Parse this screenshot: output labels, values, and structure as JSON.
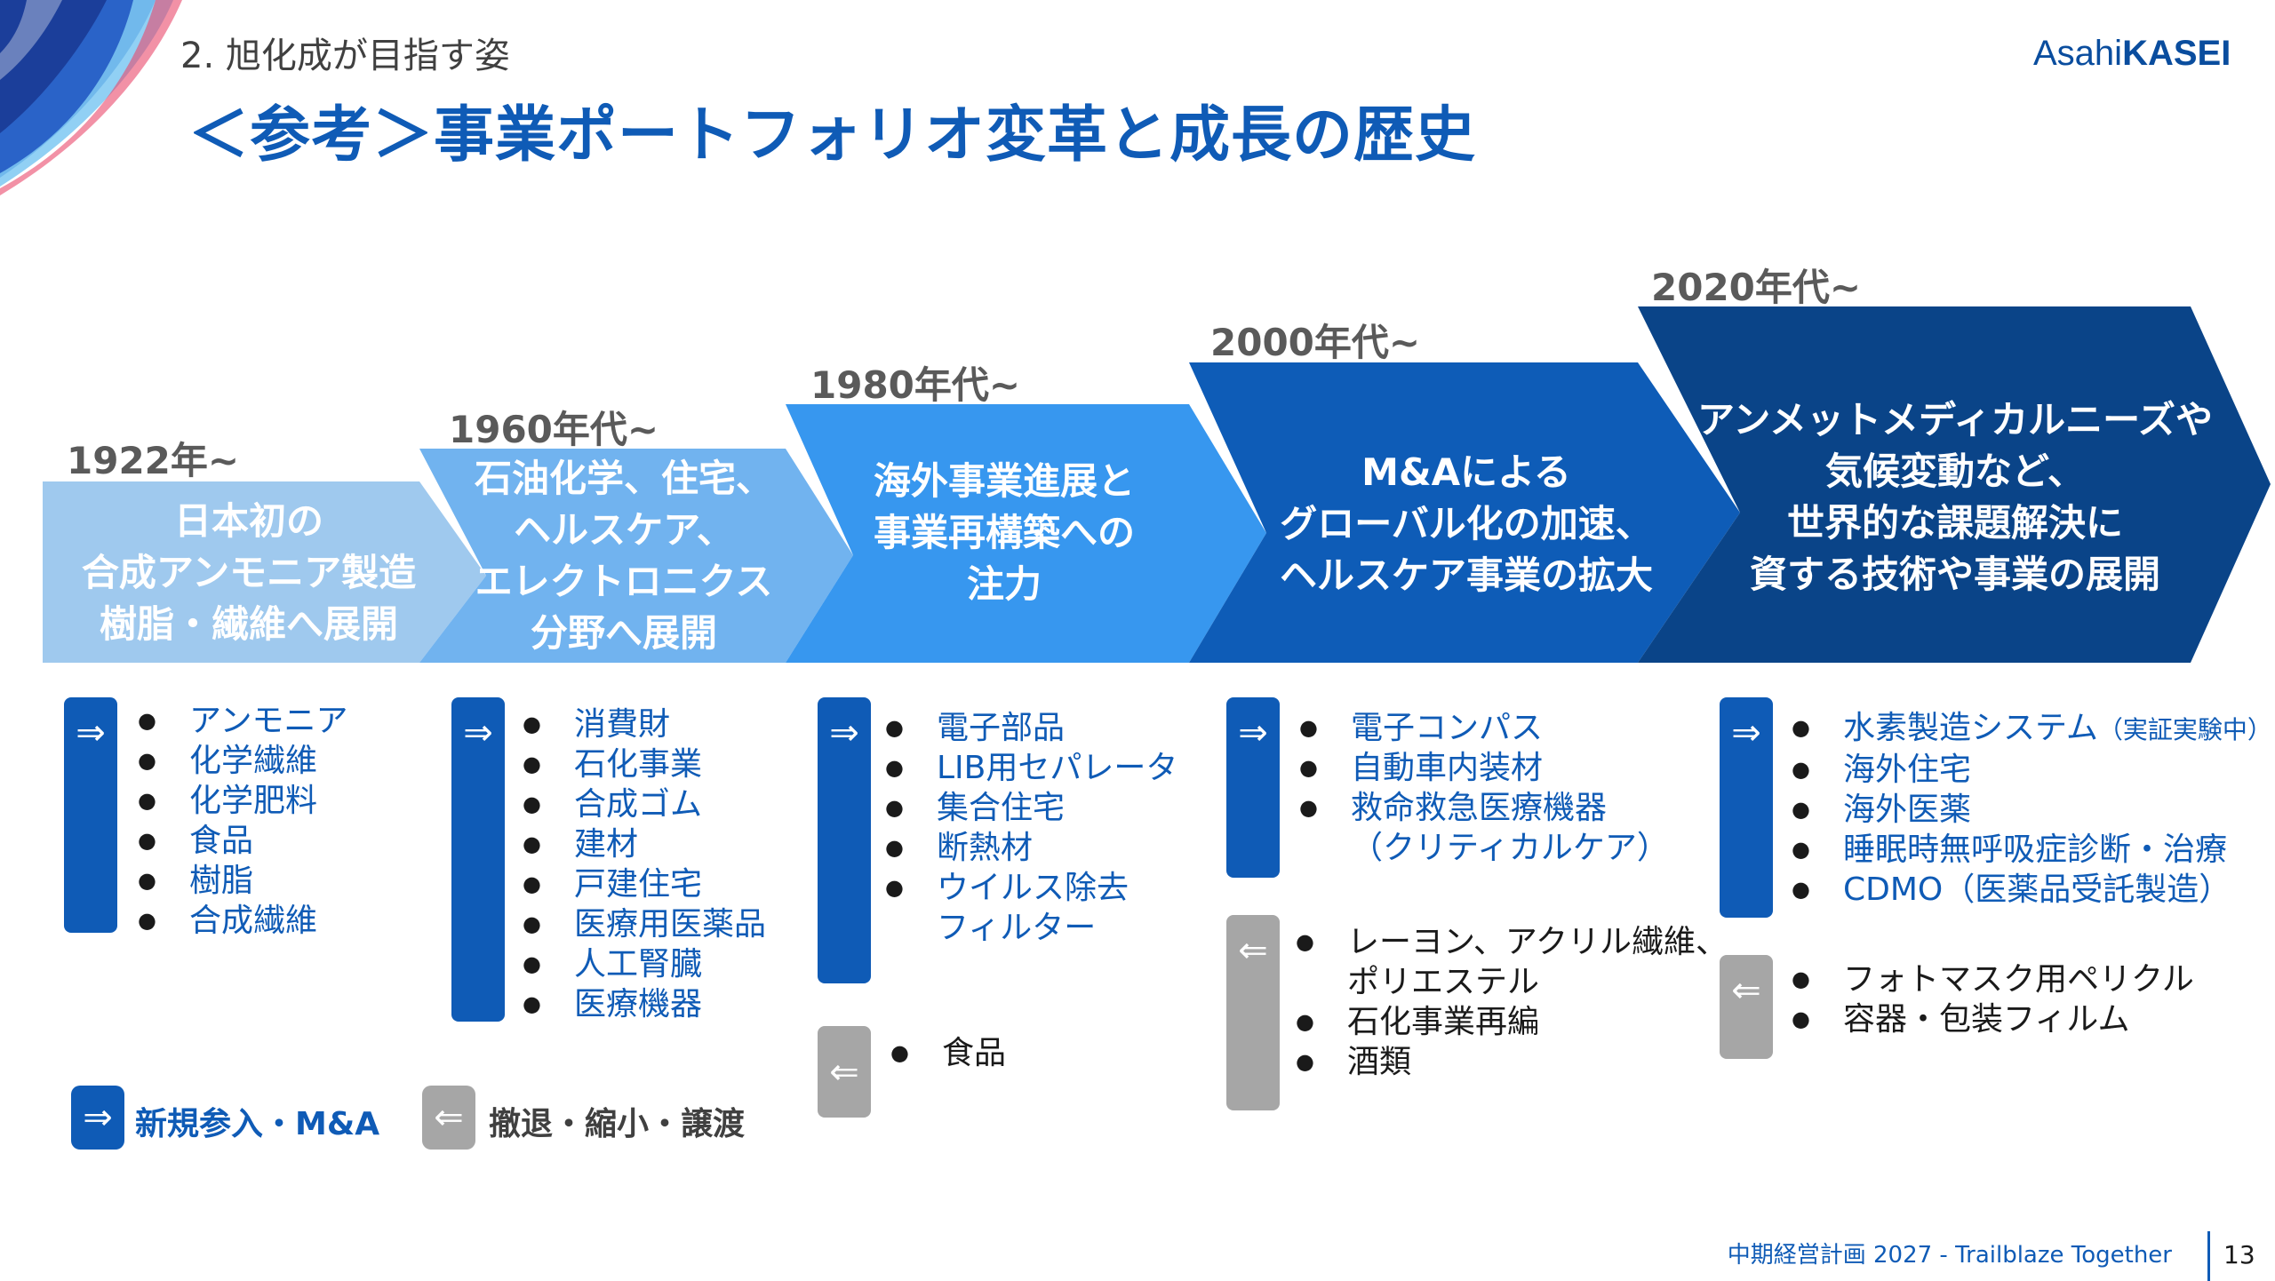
{
  "header": {
    "section": "2. 旭化成が目指す姿",
    "title": "＜参考＞事業ポートフォリオ変革と成長の歴史",
    "logo_light": "Asahi",
    "logo_bold": "KASEI"
  },
  "eras": [
    {
      "year": "1922年~",
      "text": "日本初の\n合成アンモニア製造\n樹脂・繊維へ展開",
      "color": "#9fc9ee",
      "entry_icon": "⇒",
      "entries": [
        "アンモニア",
        "化学繊維",
        "化学肥料",
        "食品",
        "樹脂",
        "合成繊維"
      ],
      "exits": []
    },
    {
      "year": "1960年代~",
      "text": "石油化学、住宅、\nヘルスケア、\nエレクトロニクス\n分野へ展開",
      "color": "#71b3ef",
      "entry_icon": "⇒",
      "entries": [
        "消費財",
        "石化事業",
        "合成ゴム",
        "建材",
        "戸建住宅",
        "医療用医薬品",
        "人工腎臓",
        "医療機器"
      ],
      "exits": []
    },
    {
      "year": "1980年代~",
      "text": "海外事業進展と\n事業再構築への\n注力",
      "color": "#3797ef",
      "entry_icon": "⇒",
      "exit_icon": "⇐",
      "entries": [
        "電子部品",
        "LIB用セパレータ",
        "集合住宅",
        "断熱材",
        "ウイルス除去\nフィルター"
      ],
      "exits": [
        "食品"
      ]
    },
    {
      "year": "2000年代~",
      "text": "M&Aによる\nグローバル化の加速、\nヘルスケア事業の拡大",
      "color": "#0e5cb7",
      "entry_icon": "⇒",
      "exit_icon": "⇐",
      "entries": [
        "電子コンパス",
        "自動車内装材",
        "救命救急医療機器\n（クリティカルケア）"
      ],
      "exits": [
        "レーヨン、アクリル繊維、\nポリエステル",
        "石化事業再編",
        "酒類"
      ]
    },
    {
      "year": "2020年代~",
      "text": "アンメットメディカルニーズや\n気候変動など、\n世界的な課題解決に\n資する技術や事業の展開",
      "color": "#0a4488",
      "entry_icon": "⇒",
      "exit_icon": "⇐",
      "entries": [
        "水素製造システム",
        "海外住宅",
        "海外医薬",
        "睡眠時無呼吸症診断・治療",
        "CDMO（医薬品受託製造）"
      ],
      "entry_note": "（実証実験中）",
      "exits": [
        "フォトマスク用ペリクル",
        "容器・包装フィルム"
      ]
    }
  ],
  "legend": {
    "entry_icon": "⇒",
    "entry_label": "新規参入・M&A",
    "exit_icon": "⇐",
    "exit_label": "撤退・縮小・譲渡"
  },
  "footer": {
    "text": "中期経営計画 2027 - Trailblaze Together",
    "page": "13"
  },
  "colors": {
    "brand_blue": "#0f5bb6",
    "gray": "#a6a6a6"
  }
}
